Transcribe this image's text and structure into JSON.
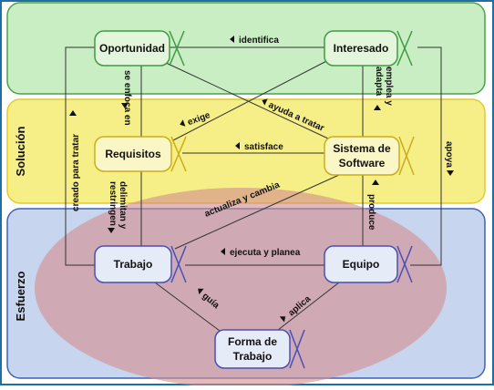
{
  "colors": {
    "frame": "#1d6fa5",
    "solucion_fill": "#f6ee86",
    "solucion_stroke": "#e2cc2a",
    "oportunidad_area_fill": "#c9eec4",
    "oportunidad_area_stroke": "#4aa24a",
    "esfuerzo_fill": "#c7d5ee",
    "esfuerzo_stroke": "#3d62b8",
    "ellipse_fill": "#d48e8e",
    "green_alpha_fill": "#e3f6dc",
    "green_alpha_stroke": "#3f9a42",
    "yellow_alpha_fill": "#fbf6c6",
    "yellow_alpha_stroke": "#c9ad1a",
    "blue_alpha_fill": "#e6ebf8",
    "blue_alpha_stroke": "#4a4fb5",
    "line": "#333333"
  },
  "areas": {
    "solucion": "Solución",
    "esfuerzo": "Esfuerzo"
  },
  "alphas": {
    "oportunidad": "Oportunidad",
    "interesado": "Interesado",
    "requisitos": "Requisitos",
    "sistema_line1": "Sistema de",
    "sistema_line2": "Software",
    "trabajo": "Trabajo",
    "equipo": "Equipo",
    "forma_line1": "Forma de",
    "forma_line2": "Trabajo"
  },
  "relations": {
    "identifica": "identifica",
    "se_enfoca_en": "se enfoca en",
    "emplea_y": "emplea y",
    "adapta": "adapta",
    "exige": "exige",
    "ayuda_a_tratar": "ayuda a tratar",
    "creado_para_tratar": "creado para tratar",
    "satisface": "satisface",
    "apoya": "apoya",
    "delimitan_y": "delimitan y",
    "restringen": "restringen",
    "actualiza_y_cambia": "actualiza y cambia",
    "produce": "produce",
    "ejecuta_y_planea": "ejecuta y planea",
    "guia": "guía",
    "aplica": "aplica"
  }
}
